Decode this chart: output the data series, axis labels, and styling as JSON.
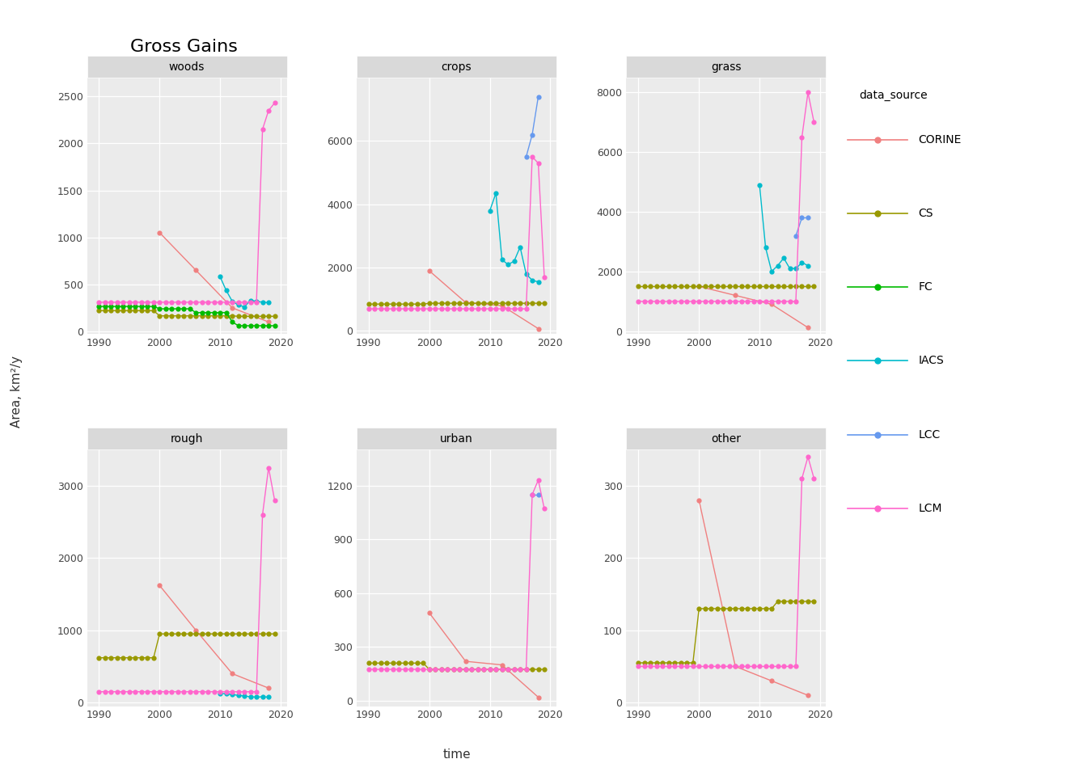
{
  "title": "Gross Gains",
  "ylabel": "Area, km²/y",
  "xlabel": "time",
  "panels": [
    "woods",
    "crops",
    "grass",
    "rough",
    "urban",
    "other"
  ],
  "colors": {
    "CORINE": "#F08080",
    "CS": "#999900",
    "FC": "#00BB00",
    "IACS": "#00BBCC",
    "LCC": "#6699EE",
    "LCM": "#FF66CC"
  },
  "background_color": "#EBEBEB",
  "strip_color": "#D9D9D9",
  "series": {
    "woods": {
      "CORINE": {
        "x": [
          2000,
          2006,
          2012,
          2018
        ],
        "y": [
          1050,
          650,
          250,
          100
        ]
      },
      "CS": {
        "x": [
          1990,
          1991,
          1992,
          1993,
          1994,
          1995,
          1996,
          1997,
          1998,
          1999,
          2000,
          2001,
          2002,
          2003,
          2004,
          2005,
          2006,
          2007,
          2008,
          2009,
          2010,
          2011,
          2012,
          2013,
          2014,
          2015,
          2016,
          2017,
          2018,
          2019
        ],
        "y": [
          220,
          220,
          220,
          220,
          220,
          220,
          220,
          220,
          220,
          220,
          165,
          165,
          165,
          165,
          165,
          165,
          165,
          165,
          165,
          165,
          165,
          165,
          165,
          160,
          160,
          160,
          160,
          160,
          160,
          160
        ]
      },
      "FC": {
        "x": [
          1990,
          1991,
          1992,
          1993,
          1994,
          1995,
          1996,
          1997,
          1998,
          1999,
          2000,
          2001,
          2002,
          2003,
          2004,
          2005,
          2006,
          2007,
          2008,
          2009,
          2010,
          2011,
          2012,
          2013,
          2014,
          2015,
          2016,
          2017,
          2018,
          2019
        ],
        "y": [
          265,
          265,
          265,
          265,
          265,
          265,
          265,
          265,
          265,
          265,
          240,
          240,
          240,
          240,
          240,
          240,
          200,
          200,
          200,
          200,
          200,
          200,
          100,
          60,
          60,
          60,
          60,
          60,
          60,
          60
        ]
      },
      "IACS": {
        "x": [
          2010,
          2011,
          2012,
          2013,
          2014,
          2015,
          2016,
          2017,
          2018
        ],
        "y": [
          580,
          435,
          320,
          280,
          260,
          330,
          320,
          310,
          305
        ]
      },
      "LCM": {
        "x": [
          1990,
          1991,
          1992,
          1993,
          1994,
          1995,
          1996,
          1997,
          1998,
          1999,
          2000,
          2001,
          2002,
          2003,
          2004,
          2005,
          2006,
          2007,
          2008,
          2009,
          2010,
          2011,
          2012,
          2013,
          2014,
          2015,
          2016,
          2017,
          2018,
          2019
        ],
        "y": [
          310,
          310,
          310,
          310,
          310,
          310,
          310,
          310,
          310,
          310,
          310,
          310,
          310,
          310,
          310,
          310,
          310,
          310,
          310,
          310,
          310,
          310,
          310,
          310,
          310,
          310,
          310,
          2150,
          2350,
          2430
        ]
      }
    },
    "crops": {
      "CORINE": {
        "x": [
          2000,
          2006,
          2012,
          2018
        ],
        "y": [
          1900,
          900,
          800,
          75
        ]
      },
      "CS": {
        "x": [
          1990,
          1991,
          1992,
          1993,
          1994,
          1995,
          1996,
          1997,
          1998,
          1999,
          2000,
          2001,
          2002,
          2003,
          2004,
          2005,
          2006,
          2007,
          2008,
          2009,
          2010,
          2011,
          2012,
          2013,
          2014,
          2015,
          2016,
          2017,
          2018,
          2019
        ],
        "y": [
          850,
          850,
          850,
          850,
          850,
          850,
          850,
          850,
          850,
          850,
          875,
          875,
          875,
          875,
          875,
          875,
          875,
          875,
          875,
          875,
          875,
          875,
          875,
          875,
          875,
          875,
          875,
          875,
          875,
          875
        ]
      },
      "IACS": {
        "x": [
          2010,
          2011,
          2012,
          2013,
          2014,
          2015,
          2016,
          2017,
          2018
        ],
        "y": [
          3800,
          4350,
          2250,
          2100,
          2200,
          2650,
          1800,
          1600,
          1550
        ]
      },
      "LCC": {
        "x": [
          2016,
          2017,
          2018
        ],
        "y": [
          5500,
          6200,
          7400
        ]
      },
      "LCM": {
        "x": [
          1990,
          1991,
          1992,
          1993,
          1994,
          1995,
          1996,
          1997,
          1998,
          1999,
          2000,
          2001,
          2002,
          2003,
          2004,
          2005,
          2006,
          2007,
          2008,
          2009,
          2010,
          2011,
          2012,
          2013,
          2014,
          2015,
          2016,
          2017,
          2018,
          2019
        ],
        "y": [
          700,
          700,
          700,
          700,
          700,
          700,
          700,
          700,
          700,
          700,
          700,
          700,
          700,
          700,
          700,
          700,
          700,
          700,
          700,
          700,
          700,
          700,
          700,
          700,
          700,
          700,
          700,
          5500,
          5300,
          1700
        ]
      }
    },
    "grass": {
      "CORINE": {
        "x": [
          2000,
          2006,
          2012,
          2018
        ],
        "y": [
          1500,
          1200,
          900,
          120
        ]
      },
      "CS": {
        "x": [
          1990,
          1991,
          1992,
          1993,
          1994,
          1995,
          1996,
          1997,
          1998,
          1999,
          2000,
          2001,
          2002,
          2003,
          2004,
          2005,
          2006,
          2007,
          2008,
          2009,
          2010,
          2011,
          2012,
          2013,
          2014,
          2015,
          2016,
          2017,
          2018,
          2019
        ],
        "y": [
          1500,
          1500,
          1500,
          1500,
          1500,
          1500,
          1500,
          1500,
          1500,
          1500,
          1500,
          1500,
          1500,
          1500,
          1500,
          1500,
          1500,
          1500,
          1500,
          1500,
          1500,
          1500,
          1500,
          1500,
          1500,
          1500,
          1500,
          1500,
          1500,
          1500
        ]
      },
      "IACS": {
        "x": [
          2010,
          2011,
          2012,
          2013,
          2014,
          2015,
          2016,
          2017,
          2018
        ],
        "y": [
          4900,
          2800,
          2000,
          2200,
          2450,
          2100,
          2100,
          2300,
          2200
        ]
      },
      "LCC": {
        "x": [
          2016,
          2017,
          2018
        ],
        "y": [
          3200,
          3800,
          3800
        ]
      },
      "LCM": {
        "x": [
          1990,
          1991,
          1992,
          1993,
          1994,
          1995,
          1996,
          1997,
          1998,
          1999,
          2000,
          2001,
          2002,
          2003,
          2004,
          2005,
          2006,
          2007,
          2008,
          2009,
          2010,
          2011,
          2012,
          2013,
          2014,
          2015,
          2016,
          2017,
          2018,
          2019
        ],
        "y": [
          1000,
          1000,
          1000,
          1000,
          1000,
          1000,
          1000,
          1000,
          1000,
          1000,
          1000,
          1000,
          1000,
          1000,
          1000,
          1000,
          1000,
          1000,
          1000,
          1000,
          1000,
          1000,
          1000,
          1000,
          1000,
          1000,
          1000,
          6500,
          8000,
          7000
        ]
      }
    },
    "rough": {
      "CORINE": {
        "x": [
          2000,
          2006,
          2012,
          2018
        ],
        "y": [
          1620,
          1000,
          400,
          200
        ]
      },
      "CS": {
        "x": [
          1990,
          1991,
          1992,
          1993,
          1994,
          1995,
          1996,
          1997,
          1998,
          1999,
          2000,
          2001,
          2002,
          2003,
          2004,
          2005,
          2006,
          2007,
          2008,
          2009,
          2010,
          2011,
          2012,
          2013,
          2014,
          2015,
          2016,
          2017,
          2018,
          2019
        ],
        "y": [
          620,
          620,
          620,
          620,
          620,
          620,
          620,
          620,
          620,
          620,
          950,
          950,
          950,
          950,
          950,
          950,
          950,
          950,
          950,
          950,
          950,
          950,
          950,
          950,
          950,
          950,
          950,
          950,
          950,
          950
        ]
      },
      "IACS": {
        "x": [
          2010,
          2011,
          2012,
          2013,
          2014,
          2015,
          2016,
          2017,
          2018
        ],
        "y": [
          130,
          120,
          110,
          100,
          90,
          80,
          75,
          80,
          75
        ]
      },
      "LCM": {
        "x": [
          1990,
          1991,
          1992,
          1993,
          1994,
          1995,
          1996,
          1997,
          1998,
          1999,
          2000,
          2001,
          2002,
          2003,
          2004,
          2005,
          2006,
          2007,
          2008,
          2009,
          2010,
          2011,
          2012,
          2013,
          2014,
          2015,
          2016,
          2017,
          2018,
          2019
        ],
        "y": [
          150,
          150,
          150,
          150,
          150,
          150,
          150,
          150,
          150,
          150,
          150,
          150,
          150,
          150,
          150,
          150,
          150,
          150,
          150,
          150,
          150,
          150,
          150,
          150,
          150,
          150,
          150,
          2600,
          3250,
          2800
        ]
      }
    },
    "urban": {
      "CORINE": {
        "x": [
          2000,
          2006,
          2012,
          2018
        ],
        "y": [
          490,
          220,
          200,
          20
        ]
      },
      "CS": {
        "x": [
          1990,
          1991,
          1992,
          1993,
          1994,
          1995,
          1996,
          1997,
          1998,
          1999,
          2000,
          2001,
          2002,
          2003,
          2004,
          2005,
          2006,
          2007,
          2008,
          2009,
          2010,
          2011,
          2012,
          2013,
          2014,
          2015,
          2016,
          2017,
          2018,
          2019
        ],
        "y": [
          210,
          210,
          210,
          210,
          210,
          210,
          210,
          210,
          210,
          210,
          175,
          175,
          175,
          175,
          175,
          175,
          175,
          175,
          175,
          175,
          175,
          175,
          175,
          175,
          175,
          175,
          175,
          175,
          175,
          175
        ]
      },
      "LCC": {
        "x": [
          2017,
          2018
        ],
        "y": [
          1150,
          1150
        ]
      },
      "LCM": {
        "x": [
          1990,
          1991,
          1992,
          1993,
          1994,
          1995,
          1996,
          1997,
          1998,
          1999,
          2000,
          2001,
          2002,
          2003,
          2004,
          2005,
          2006,
          2007,
          2008,
          2009,
          2010,
          2011,
          2012,
          2013,
          2014,
          2015,
          2016,
          2017,
          2018,
          2019
        ],
        "y": [
          175,
          175,
          175,
          175,
          175,
          175,
          175,
          175,
          175,
          175,
          175,
          175,
          175,
          175,
          175,
          175,
          175,
          175,
          175,
          175,
          175,
          175,
          175,
          175,
          175,
          175,
          175,
          1150,
          1230,
          1070
        ]
      }
    },
    "other": {
      "CORINE": {
        "x": [
          2000,
          2006,
          2012,
          2018
        ],
        "y": [
          280,
          50,
          30,
          10
        ]
      },
      "CS": {
        "x": [
          1990,
          1991,
          1992,
          1993,
          1994,
          1995,
          1996,
          1997,
          1998,
          1999,
          2000,
          2001,
          2002,
          2003,
          2004,
          2005,
          2006,
          2007,
          2008,
          2009,
          2010,
          2011,
          2012,
          2013,
          2014,
          2015,
          2016,
          2017,
          2018,
          2019
        ],
        "y": [
          55,
          55,
          55,
          55,
          55,
          55,
          55,
          55,
          55,
          55,
          130,
          130,
          130,
          130,
          130,
          130,
          130,
          130,
          130,
          130,
          130,
          130,
          130,
          140,
          140,
          140,
          140,
          140,
          140,
          140
        ]
      },
      "LCM": {
        "x": [
          1990,
          1991,
          1992,
          1993,
          1994,
          1995,
          1996,
          1997,
          1998,
          1999,
          2000,
          2001,
          2002,
          2003,
          2004,
          2005,
          2006,
          2007,
          2008,
          2009,
          2010,
          2011,
          2012,
          2013,
          2014,
          2015,
          2016,
          2017,
          2018,
          2019
        ],
        "y": [
          50,
          50,
          50,
          50,
          50,
          50,
          50,
          50,
          50,
          50,
          50,
          50,
          50,
          50,
          50,
          50,
          50,
          50,
          50,
          50,
          50,
          50,
          50,
          50,
          50,
          50,
          50,
          310,
          340,
          310
        ]
      }
    }
  },
  "ylims": {
    "woods": [
      -30,
      2700
    ],
    "crops": [
      -100,
      8000
    ],
    "grass": [
      -100,
      8500
    ],
    "rough": [
      -50,
      3500
    ],
    "urban": [
      -30,
      1400
    ],
    "other": [
      -5,
      350
    ]
  },
  "yticks": {
    "woods": [
      0,
      500,
      1000,
      1500,
      2000,
      2500
    ],
    "crops": [
      0,
      2000,
      4000,
      6000
    ],
    "grass": [
      0,
      2000,
      4000,
      6000,
      8000
    ],
    "rough": [
      0,
      1000,
      2000,
      3000
    ],
    "urban": [
      0,
      300,
      600,
      900,
      1200
    ],
    "other": [
      0,
      100,
      200,
      300
    ]
  },
  "legend_order": [
    "CORINE",
    "CS",
    "FC",
    "IACS",
    "LCC",
    "LCM"
  ]
}
